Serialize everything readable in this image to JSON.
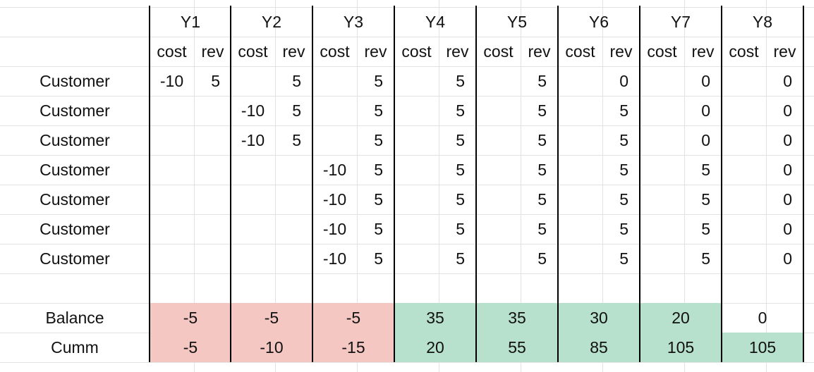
{
  "years": [
    "Y1",
    "Y2",
    "Y3",
    "Y4",
    "Y5",
    "Y6",
    "Y7",
    "Y8"
  ],
  "subheaders": {
    "cost": "cost",
    "rev": "rev"
  },
  "rows": [
    {
      "label": "Customer",
      "cost": [
        "-10",
        "",
        "",
        "",
        "",
        "",
        "",
        ""
      ],
      "rev": [
        "5",
        "5",
        "5",
        "5",
        "5",
        "0",
        "0",
        "0"
      ]
    },
    {
      "label": "Customer",
      "cost": [
        "",
        "-10",
        "",
        "",
        "",
        "",
        "",
        ""
      ],
      "rev": [
        "",
        "5",
        "5",
        "5",
        "5",
        "5",
        "0",
        "0"
      ]
    },
    {
      "label": "Customer",
      "cost": [
        "",
        "-10",
        "",
        "",
        "",
        "",
        "",
        ""
      ],
      "rev": [
        "",
        "5",
        "5",
        "5",
        "5",
        "5",
        "0",
        "0"
      ]
    },
    {
      "label": "Customer",
      "cost": [
        "",
        "",
        "-10",
        "",
        "",
        "",
        "",
        ""
      ],
      "rev": [
        "",
        "",
        "5",
        "5",
        "5",
        "5",
        "5",
        "0"
      ]
    },
    {
      "label": "Customer",
      "cost": [
        "",
        "",
        "-10",
        "",
        "",
        "",
        "",
        ""
      ],
      "rev": [
        "",
        "",
        "5",
        "5",
        "5",
        "5",
        "5",
        "0"
      ]
    },
    {
      "label": "Customer",
      "cost": [
        "",
        "",
        "-10",
        "",
        "",
        "",
        "",
        ""
      ],
      "rev": [
        "",
        "",
        "5",
        "5",
        "5",
        "5",
        "5",
        "0"
      ]
    },
    {
      "label": "Customer",
      "cost": [
        "",
        "",
        "-10",
        "",
        "",
        "",
        "",
        ""
      ],
      "rev": [
        "",
        "",
        "5",
        "5",
        "5",
        "5",
        "5",
        "0"
      ]
    }
  ],
  "balance": {
    "label": "Balance",
    "values": [
      "-5",
      "-5",
      "-5",
      "35",
      "35",
      "30",
      "20",
      "0"
    ]
  },
  "cumm": {
    "label": "Cumm",
    "values": [
      "-5",
      "-10",
      "-15",
      "20",
      "55",
      "85",
      "105",
      "105"
    ]
  },
  "colors": {
    "negative_fill": "#f4c7c3",
    "positive_fill": "#b7e1cd",
    "gridline": "#e2e2e2",
    "separator": "#000000"
  }
}
